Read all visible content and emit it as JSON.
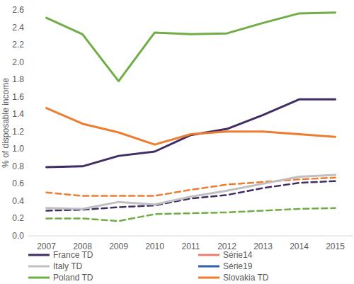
{
  "chart_data": {
    "type": "line",
    "y_label": "% of disposable income",
    "categories": [
      "2007",
      "2008",
      "2009",
      "2010",
      "2011",
      "2012",
      "2013",
      "2014",
      "2015"
    ],
    "ylim": [
      0,
      2.6
    ],
    "yticks": [
      {
        "value": 0,
        "label": "0.0"
      },
      0.2,
      0.4,
      0.6,
      0.8,
      {
        "value": 1,
        "label": "1.0"
      },
      1.2,
      1.4,
      1.6,
      1.8,
      {
        "value": 2,
        "label": "2.0"
      },
      2.2,
      2.4,
      2.6
    ],
    "grid": false,
    "legend": "bottom",
    "series": [
      {
        "name": "France TD",
        "color": "#3f2d63",
        "line_style": "solid",
        "values": [
          0.79,
          0.8,
          0.92,
          0.97,
          1.16,
          1.23,
          1.39,
          1.57,
          1.57
        ]
      },
      {
        "name": "Série14",
        "color": "#e8806e",
        "line_style": "solid",
        "values": [
          null,
          null,
          null,
          null,
          null,
          null,
          null,
          null,
          null
        ]
      },
      {
        "name": "Italy TD",
        "color": "#bfbfbf",
        "line_style": "solid",
        "values": [
          0.32,
          0.31,
          0.39,
          0.36,
          0.45,
          0.52,
          0.6,
          0.68,
          0.7
        ]
      },
      {
        "name": "Série19",
        "color": "#2e5fa8",
        "line_style": "solid",
        "values": [
          null,
          null,
          null,
          null,
          null,
          null,
          null,
          null,
          null
        ]
      },
      {
        "name": "Poland TD",
        "color": "#70ad47",
        "line_style": "solid",
        "values": [
          2.51,
          2.32,
          1.78,
          2.34,
          2.32,
          2.33,
          2.45,
          2.56,
          2.57
        ]
      },
      {
        "name": "Slovakia TD",
        "color": "#ed7d31",
        "line_style": "solid",
        "values": [
          1.47,
          1.29,
          1.19,
          1.05,
          1.17,
          1.2,
          1.2,
          1.17,
          1.14
        ]
      },
      {
        "color": "#ed7d31",
        "line_style": "dashed",
        "values": [
          0.5,
          0.46,
          0.46,
          0.46,
          0.53,
          0.59,
          0.62,
          0.65,
          0.67
        ]
      },
      {
        "color": "#3f2d63",
        "line_style": "dashed",
        "values": [
          0.29,
          0.3,
          0.33,
          0.35,
          0.43,
          0.47,
          0.55,
          0.61,
          0.63
        ]
      },
      {
        "color": "#70ad47",
        "line_style": "dashed",
        "values": [
          0.2,
          0.2,
          0.17,
          0.25,
          0.26,
          0.27,
          0.29,
          0.31,
          0.32
        ]
      }
    ]
  }
}
